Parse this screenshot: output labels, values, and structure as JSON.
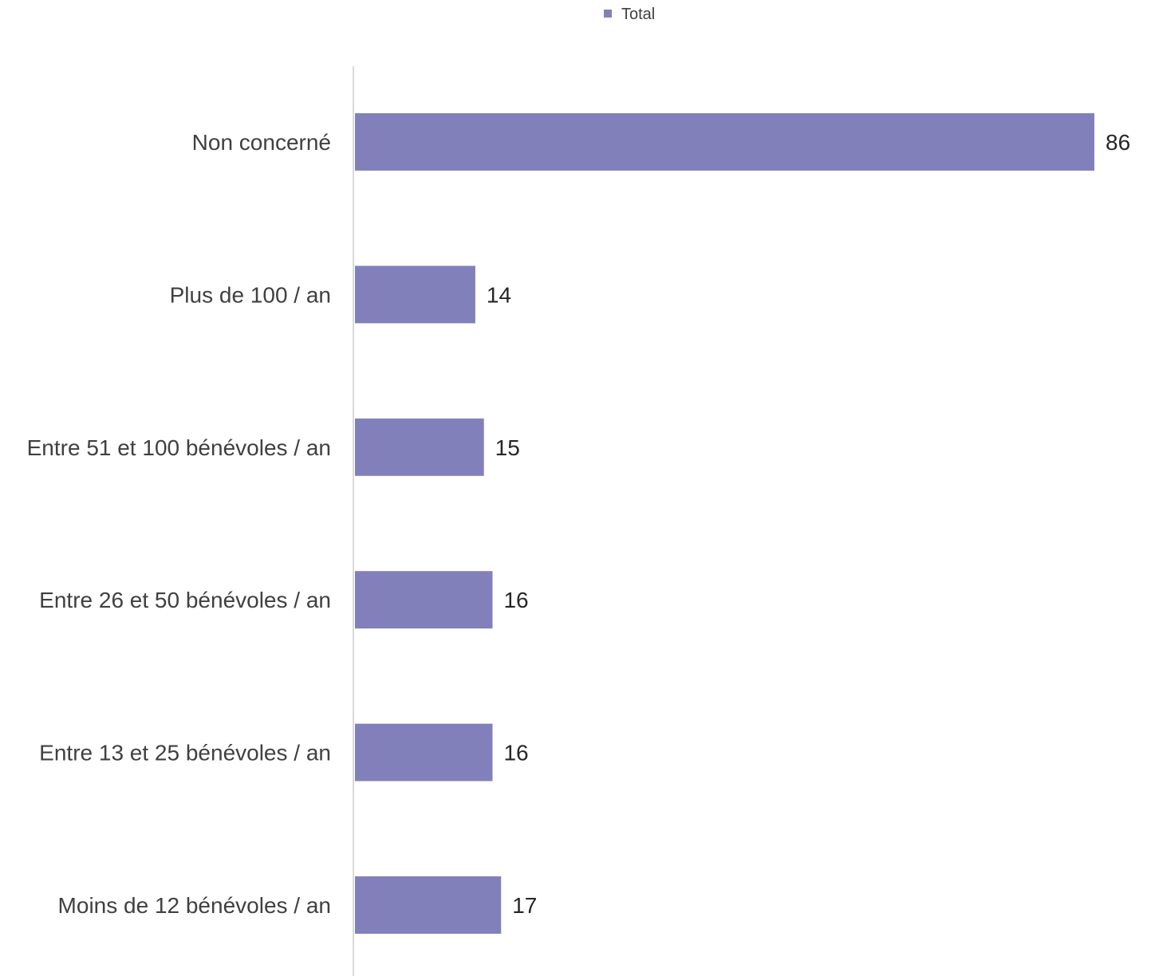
{
  "chart_data": {
    "type": "bar",
    "orientation": "horizontal",
    "categories": [
      "Non concerné",
      "Plus de 100 / an",
      "Entre 51 et 100 bénévoles / an",
      "Entre 26 et 50 bénévoles / an",
      "Entre 13 et 25 bénévoles / an",
      "Moins de 12 bénévoles / an"
    ],
    "series": [
      {
        "name": "Total",
        "values": [
          86,
          14,
          15,
          16,
          16,
          17
        ],
        "color": "#8280BB"
      }
    ],
    "xlim": [
      0,
      86
    ],
    "legend": "top-center",
    "grid": false,
    "data_labels": true,
    "title": "",
    "xlabel": "",
    "ylabel": ""
  },
  "colors": {
    "bar": "#8280BB",
    "axis_line": "#D9D9D9",
    "category_text": "#404040",
    "value_text": "#262626"
  }
}
